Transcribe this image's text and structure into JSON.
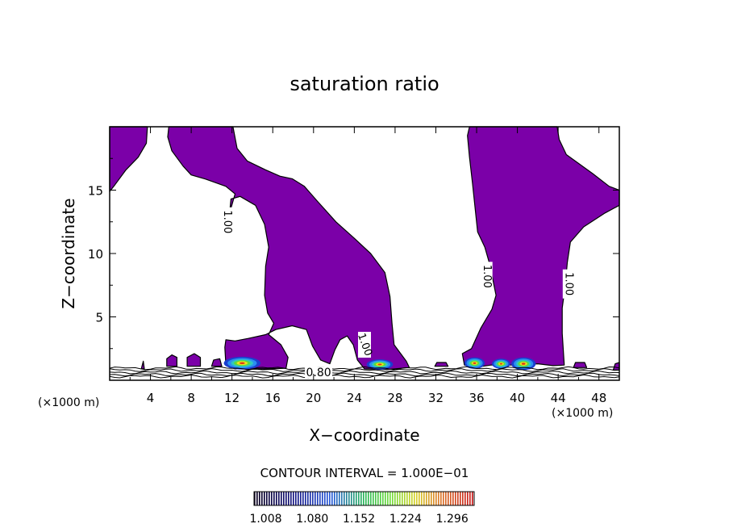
{
  "chart_data": {
    "type": "heatmap",
    "title": "saturation ratio",
    "xlabel": "X−coordinate",
    "ylabel": "Z−coordinate",
    "x_unit": "(×1000 m)",
    "z_unit": "(×1000 m)",
    "xlim": [
      0,
      50
    ],
    "ylim": [
      0,
      20
    ],
    "x_ticks": [
      4,
      8,
      12,
      16,
      20,
      24,
      28,
      32,
      36,
      40,
      44,
      48
    ],
    "y_ticks": [
      5,
      10,
      15
    ],
    "contour_interval_text": "CONTOUR INTERVAL = 1.000E−01",
    "contour_labels": [
      {
        "text": "1.00",
        "x": 11.5,
        "z": 12.5
      },
      {
        "text": "1.00",
        "x": 25.0,
        "z": 2.8
      },
      {
        "text": "1.00",
        "x": 37.0,
        "z": 8.2
      },
      {
        "text": "1.00",
        "x": 45.0,
        "z": 7.6
      },
      {
        "text": "0.80",
        "x": 20.5,
        "z": 0.5
      }
    ],
    "colorbar": {
      "min": 0.99,
      "max": 1.33,
      "tick_labels": [
        "1.008",
        "1.080",
        "1.152",
        "1.224",
        "1.296"
      ]
    },
    "fill_color": "#7b00a8"
  }
}
